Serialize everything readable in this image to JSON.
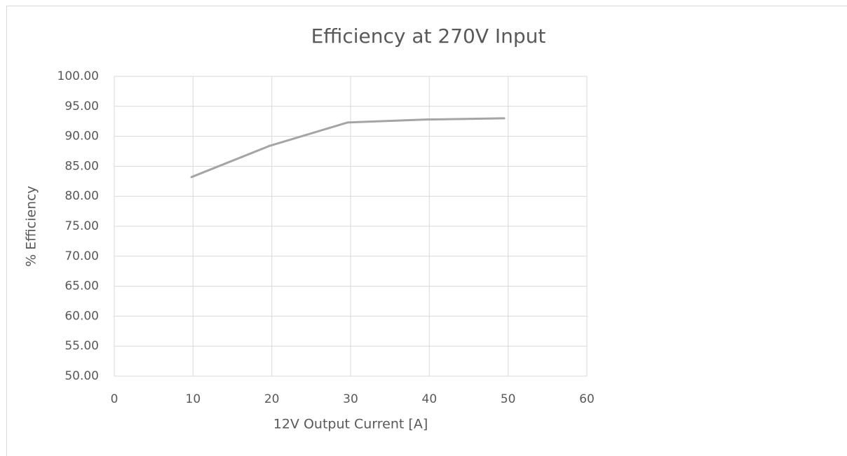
{
  "chart_data": {
    "type": "line",
    "title": "Efficiency at 270V Input",
    "x_label": "12V Output Current [A]",
    "y_label": "% Efficiency",
    "x": [
      9.8,
      19.7,
      29.6,
      39.6,
      49.5
    ],
    "series": [
      {
        "name": "Efficiency",
        "color": "#a5a5a5",
        "values": [
          83.2,
          88.4,
          92.3,
          92.8,
          93.0
        ]
      }
    ],
    "xlim": [
      0,
      60
    ],
    "xticks": [
      0,
      10,
      20,
      30,
      40,
      50,
      60
    ],
    "ylim": [
      50,
      100
    ],
    "yticks": [
      {
        "value": 50,
        "label": "50.00"
      },
      {
        "value": 55,
        "label": "55.00"
      },
      {
        "value": 60,
        "label": "60.00"
      },
      {
        "value": 65,
        "label": "65.00"
      },
      {
        "value": 70,
        "label": "70.00"
      },
      {
        "value": 75,
        "label": "75.00"
      },
      {
        "value": 80,
        "label": "80.00"
      },
      {
        "value": 85,
        "label": "85.00"
      },
      {
        "value": 90,
        "label": "90.00"
      },
      {
        "value": 95,
        "label": "95.00"
      },
      {
        "value": 100,
        "label": "100.00"
      }
    ],
    "grid": true
  }
}
